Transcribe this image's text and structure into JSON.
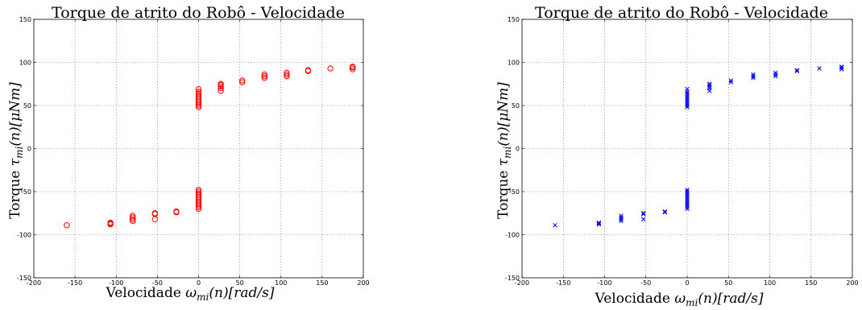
{
  "chart_data": [
    {
      "type": "scatter",
      "title": "Torque de atrito do Robô - Velocidade",
      "xlabel": "Velocidade ω_mi(n)[rad/s]",
      "ylabel": "Torque τ_mi(n)[μNm]",
      "xlim": [
        -200,
        200
      ],
      "ylim": [
        -150,
        150
      ],
      "xticks": [
        "-200",
        "-150",
        "-100",
        "-50",
        "0",
        "50",
        "100",
        "150",
        "200"
      ],
      "yticks": [
        "-150",
        "-100",
        "-50",
        "0",
        "50",
        "100",
        "150"
      ],
      "grid": true,
      "marker": "circle",
      "color": "#ff0000",
      "points": [
        [
          -160,
          -89
        ],
        [
          -107,
          -86
        ],
        [
          -107,
          -87
        ],
        [
          -107,
          -88
        ],
        [
          -80,
          -78
        ],
        [
          -80,
          -80
        ],
        [
          -80,
          -82
        ],
        [
          -80,
          -84
        ],
        [
          -53,
          -75
        ],
        [
          -53,
          -76
        ],
        [
          -53,
          -82
        ],
        [
          -27,
          -73
        ],
        [
          -27,
          -74
        ],
        [
          0,
          -48
        ],
        [
          0,
          -50
        ],
        [
          0,
          -52
        ],
        [
          0,
          -54
        ],
        [
          0,
          -56
        ],
        [
          0,
          -58
        ],
        [
          0,
          -60
        ],
        [
          0,
          -62
        ],
        [
          0,
          -64
        ],
        [
          0,
          -66
        ],
        [
          0,
          -68
        ],
        [
          0,
          -70
        ],
        [
          0,
          48
        ],
        [
          0,
          50
        ],
        [
          0,
          52
        ],
        [
          0,
          54
        ],
        [
          0,
          56
        ],
        [
          0,
          58
        ],
        [
          0,
          60
        ],
        [
          0,
          62
        ],
        [
          0,
          64
        ],
        [
          0,
          66
        ],
        [
          0,
          69
        ],
        [
          27,
          67
        ],
        [
          27,
          70
        ],
        [
          27,
          72
        ],
        [
          27,
          74
        ],
        [
          27,
          75
        ],
        [
          53,
          77
        ],
        [
          53,
          79
        ],
        [
          80,
          82
        ],
        [
          80,
          84
        ],
        [
          80,
          86
        ],
        [
          107,
          84
        ],
        [
          107,
          86
        ],
        [
          107,
          88
        ],
        [
          133,
          90
        ],
        [
          133,
          91
        ],
        [
          160,
          93
        ],
        [
          187,
          92
        ],
        [
          187,
          94
        ],
        [
          187,
          95
        ]
      ]
    },
    {
      "type": "scatter",
      "title": "Torque de atrito do Robô - Velocidade",
      "xlabel": "Velocidade ω_mi(n)[rad/s]",
      "ylabel": "Torque τ_mi(n)[μNm]",
      "xlim": [
        -200,
        200
      ],
      "ylim": [
        -150,
        150
      ],
      "xticks": [
        "-200",
        "-150",
        "-100",
        "-50",
        "0",
        "50",
        "100",
        "150",
        "200"
      ],
      "yticks": [
        "-150",
        "-100",
        "-50",
        "0",
        "50",
        "100",
        "150"
      ],
      "grid": true,
      "marker": "x",
      "color": "#0000ff",
      "points": [
        [
          -160,
          -89
        ],
        [
          -107,
          -86
        ],
        [
          -107,
          -87
        ],
        [
          -107,
          -88
        ],
        [
          -80,
          -78
        ],
        [
          -80,
          -80
        ],
        [
          -80,
          -82
        ],
        [
          -80,
          -84
        ],
        [
          -53,
          -75
        ],
        [
          -53,
          -76
        ],
        [
          -53,
          -82
        ],
        [
          -27,
          -73
        ],
        [
          -27,
          -74
        ],
        [
          0,
          -48
        ],
        [
          0,
          -50
        ],
        [
          0,
          -52
        ],
        [
          0,
          -54
        ],
        [
          0,
          -56
        ],
        [
          0,
          -58
        ],
        [
          0,
          -60
        ],
        [
          0,
          -62
        ],
        [
          0,
          -64
        ],
        [
          0,
          -66
        ],
        [
          0,
          -68
        ],
        [
          0,
          -70
        ],
        [
          0,
          48
        ],
        [
          0,
          50
        ],
        [
          0,
          52
        ],
        [
          0,
          54
        ],
        [
          0,
          56
        ],
        [
          0,
          58
        ],
        [
          0,
          60
        ],
        [
          0,
          62
        ],
        [
          0,
          64
        ],
        [
          0,
          66
        ],
        [
          0,
          69
        ],
        [
          27,
          67
        ],
        [
          27,
          70
        ],
        [
          27,
          72
        ],
        [
          27,
          74
        ],
        [
          27,
          75
        ],
        [
          53,
          77
        ],
        [
          53,
          79
        ],
        [
          80,
          82
        ],
        [
          80,
          84
        ],
        [
          80,
          86
        ],
        [
          107,
          84
        ],
        [
          107,
          86
        ],
        [
          107,
          88
        ],
        [
          133,
          90
        ],
        [
          133,
          91
        ],
        [
          160,
          93
        ],
        [
          187,
          92
        ],
        [
          187,
          94
        ],
        [
          187,
          95
        ]
      ]
    }
  ]
}
